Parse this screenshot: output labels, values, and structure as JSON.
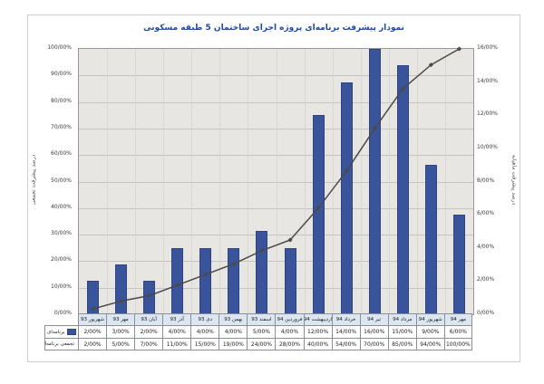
{
  "title_bar": {
    "title": "نمودار پیشرفت برنامه‌ای پروژه اجرای ساختمان 5 طبقه مسکونی"
  },
  "colors": {
    "title": "#1f4aa0",
    "bar_fill": "#3a549b",
    "bar_border": "#2f4480",
    "line": "#4a4a4a",
    "plot_background": "#e8e6e2",
    "gridline": "#c6c3be",
    "table_header_background": "#dce6f1",
    "table_border": "#8a8f99"
  },
  "chart_data": {
    "type": "bar",
    "title": "نمودار پیشرفت برنامه‌ای پروژه اجرای ساختمان 5 طبقه مسکونی",
    "categories": [
      "شهریور 93",
      "مهر 93",
      "آبان 93",
      "آذر 93",
      "دی 93",
      "بهمن 93",
      "اسفند 93",
      "فروردین 94",
      "اردیبهشت 94",
      "خرداد 94",
      "تیر 94",
      "مرداد 94",
      "شهریور 94",
      "مهر 94"
    ],
    "series": [
      {
        "name": "برنامه‌ای",
        "type": "bar",
        "axis": "right",
        "values": [
          2,
          3,
          2,
          4,
          4,
          4,
          5,
          4,
          12,
          14,
          16,
          15,
          9,
          6
        ],
        "labels": [
          "2/00%",
          "3/00%",
          "2/00%",
          "4/00%",
          "4/00%",
          "4/00%",
          "5/00%",
          "4/00%",
          "12/00%",
          "14/00%",
          "16/00%",
          "15/00%",
          "9/00%",
          "6/00%"
        ]
      },
      {
        "name": "تجمعی برنامه‌ای",
        "type": "line",
        "axis": "left",
        "values": [
          2,
          5,
          7,
          11,
          15,
          19,
          24,
          28,
          40,
          54,
          70,
          85,
          94,
          100
        ],
        "labels": [
          "2/00%",
          "5/00%",
          "7/00%",
          "11/00%",
          "15/00%",
          "19/00%",
          "24/00%",
          "28/00%",
          "40/00%",
          "54/00%",
          "70/00%",
          "85/00%",
          "94/00%",
          "100/00%"
        ]
      }
    ],
    "left_axis": {
      "title": "درصد پیشرفت تجمعی",
      "min": 0,
      "max": 100,
      "step": 10,
      "tick_labels": [
        "0/00%",
        "10/00%",
        "20/00%",
        "30/00%",
        "40/00%",
        "50/00%",
        "60/00%",
        "70/00%",
        "80/00%",
        "90/00%",
        "100/00%"
      ]
    },
    "right_axis": {
      "title": "درصد پیشرفت ماهیانه",
      "min": 0,
      "max": 16,
      "step": 2,
      "tick_labels": [
        "0/00%",
        "2/00%",
        "4/00%",
        "6/00%",
        "8/00%",
        "10/00%",
        "12/00%",
        "14/00%",
        "16/00%"
      ]
    },
    "grid": true,
    "legend_position": "table-left"
  }
}
